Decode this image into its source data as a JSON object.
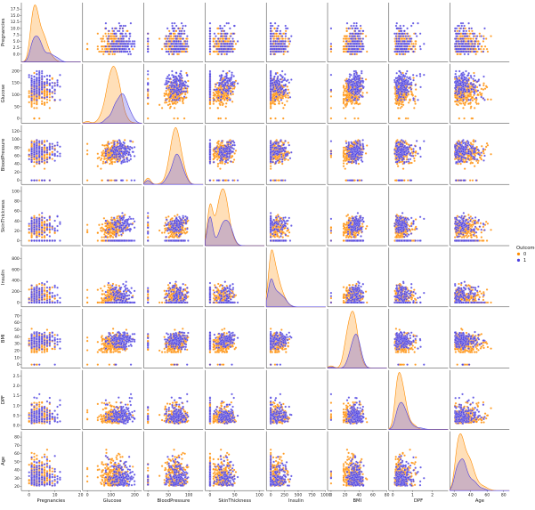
{
  "chart_data": {
    "type": "scatter",
    "subtype": "pairplot",
    "variables": [
      "Pregnancies",
      "Glucose",
      "BloodPressure",
      "SkinThickness",
      "Insulin",
      "BMI",
      "DPF",
      "Age"
    ],
    "ranges": {
      "Pregnancies": [
        -3,
        20
      ],
      "Glucose": [
        -20,
        230
      ],
      "BloodPressure": [
        -10,
        135
      ],
      "SkinThickness": [
        -10,
        110
      ],
      "Insulin": [
        -80,
        1000
      ],
      "BMI": [
        -5,
        80
      ],
      "DPF": [
        -0.2,
        2.8
      ],
      "Age": [
        15,
        87
      ]
    },
    "y_ticks": {
      "Pregnancies": [
        0.0,
        2.5,
        5.0,
        7.5,
        10.0,
        12.5,
        15.0,
        17.5
      ],
      "Glucose": [
        0,
        50,
        100,
        150,
        200
      ],
      "BloodPressure": [
        0,
        20,
        40,
        60,
        80,
        100,
        120
      ],
      "SkinThickness": [
        0,
        20,
        40,
        60,
        80,
        100
      ],
      "Insulin": [
        0,
        200,
        400,
        600,
        800
      ],
      "BMI": [
        0,
        10,
        20,
        30,
        40,
        50,
        60,
        70
      ],
      "DPF": [
        0.0,
        0.5,
        1.0,
        1.5,
        2.0,
        2.5
      ],
      "Age": [
        20,
        30,
        40,
        50,
        60,
        70,
        80
      ]
    },
    "y_tick_labels": {
      "Pregnancies": [
        "0.0",
        "2.5",
        "5.0",
        "7.5",
        "10.0",
        "12.5",
        "15.0",
        "17.5"
      ],
      "Glucose": [
        "0",
        "50",
        "100",
        "150",
        "200"
      ],
      "BloodPressure": [
        "0",
        "20",
        "40",
        "60",
        "80",
        "100",
        "120"
      ],
      "SkinThickness": [
        "0",
        "20",
        "40",
        "60",
        "80",
        "100"
      ],
      "Insulin": [
        "0",
        "200",
        "400",
        "600",
        "800"
      ],
      "BMI": [
        "0",
        "10",
        "20",
        "30",
        "40",
        "50",
        "60",
        "70"
      ],
      "DPF": [
        "0.0",
        "0.5",
        "1.0",
        "1.5",
        "2.0",
        "2.5"
      ],
      "Age": [
        "20",
        "30",
        "40",
        "50",
        "60",
        "70",
        "80"
      ]
    },
    "x_ticks": {
      "Pregnancies": [
        0,
        10,
        20
      ],
      "Glucose": [
        0,
        100,
        200
      ],
      "BloodPressure": [
        0,
        50,
        100
      ],
      "SkinThickness": [
        0,
        50,
        100
      ],
      "Insulin": [
        0,
        250,
        500,
        750,
        1000
      ],
      "BMI": [
        0,
        20,
        40,
        60,
        80
      ],
      "DPF": [
        0,
        1,
        2
      ],
      "Age": [
        20,
        40,
        60,
        80
      ]
    },
    "x_tick_labels": {
      "Pregnancies": [
        "0",
        "10",
        "20"
      ],
      "Glucose": [
        "0",
        "100",
        "200"
      ],
      "BloodPressure": [
        "0",
        "50",
        "100"
      ],
      "SkinThickness": [
        "0",
        "50",
        "100"
      ],
      "Insulin": [
        "0",
        "250",
        "500",
        "750",
        "1000"
      ],
      "BMI": [
        "0",
        "20",
        "40",
        "60",
        "80"
      ],
      "DPF": [
        "0",
        "1",
        "2"
      ],
      "Age": [
        "20",
        "40",
        "60",
        "80"
      ]
    },
    "series": [
      {
        "name": "0",
        "color": "#ff8c00",
        "profile": {
          "Pregnancies": {
            "mean": 3.3,
            "sd": 3.0,
            "min": 0,
            "max": 13,
            "int": true
          },
          "Glucose": {
            "mean": 110,
            "sd": 26,
            "min": 44,
            "max": 197
          },
          "BloodPressure": {
            "mean": 68,
            "sd": 12,
            "min": 24,
            "max": 122
          },
          "SkinThickness": {
            "mean": 27,
            "sd": 10,
            "min": 7,
            "max": 60
          },
          "Insulin": {
            "mean": 130,
            "sd": 100,
            "min": 15,
            "max": 744
          },
          "BMI": {
            "mean": 30.8,
            "sd": 6.5,
            "min": 18,
            "max": 57
          },
          "DPF": {
            "mean": 0.43,
            "sd": 0.3,
            "min": 0.08,
            "max": 2.33
          },
          "Age": {
            "mean": 31,
            "sd": 11,
            "min": 21,
            "max": 81
          }
        }
      },
      {
        "name": "1",
        "color": "#4b3fe0",
        "profile": {
          "Pregnancies": {
            "mean": 4.9,
            "sd": 3.7,
            "min": 0,
            "max": 17,
            "int": true
          },
          "Glucose": {
            "mean": 141,
            "sd": 30,
            "min": 78,
            "max": 199
          },
          "BloodPressure": {
            "mean": 71,
            "sd": 13,
            "min": 30,
            "max": 114
          },
          "SkinThickness": {
            "mean": 33,
            "sd": 10,
            "min": 7,
            "max": 99
          },
          "Insulin": {
            "mean": 205,
            "sd": 140,
            "min": 14,
            "max": 846
          },
          "BMI": {
            "mean": 35.4,
            "sd": 6.8,
            "min": 22,
            "max": 67
          },
          "DPF": {
            "mean": 0.55,
            "sd": 0.37,
            "min": 0.09,
            "max": 2.42
          },
          "Age": {
            "mean": 37,
            "sd": 11,
            "min": 21,
            "max": 70
          }
        }
      }
    ],
    "xlabel": "",
    "ylabel": "",
    "title": "",
    "legend": {
      "title": "Outcome",
      "entries": [
        {
          "label": "0",
          "color": "#ff8c00"
        },
        {
          "label": "1",
          "color": "#4b3fe0"
        }
      ],
      "placement": "center-right outside"
    },
    "diagonal": "kde",
    "grid": false
  }
}
